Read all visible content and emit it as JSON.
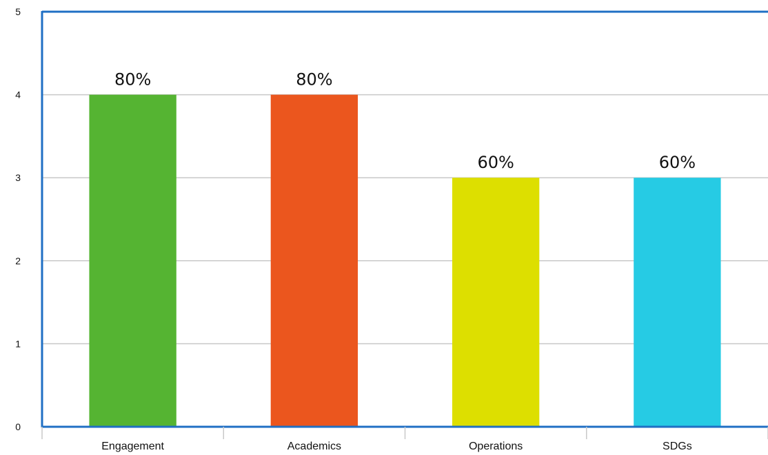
{
  "chart_data": {
    "type": "bar",
    "categories": [
      "Engagement",
      "Academics",
      "Operations",
      "SDGs"
    ],
    "values": [
      4,
      4,
      3,
      3
    ],
    "data_labels": [
      "80%",
      "80%",
      "60%",
      "60%"
    ],
    "colors": [
      "#55b432",
      "#eb561e",
      "#dddf00",
      "#26cbe4"
    ],
    "ylim": [
      0,
      5
    ],
    "yticks": [
      "0",
      "1",
      "2",
      "3",
      "4",
      "5"
    ],
    "grid": true,
    "axis_color": "#1f6fc4",
    "grid_color": "#c8c8c8"
  }
}
